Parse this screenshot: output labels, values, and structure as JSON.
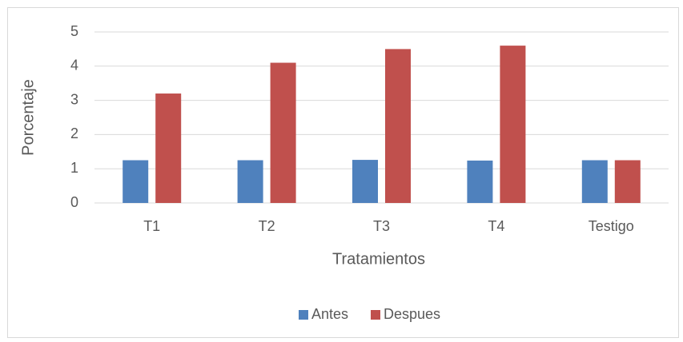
{
  "chart_data": {
    "type": "bar",
    "x_label": "Tratamientos",
    "y_label": "Porcentaje",
    "categories": [
      "T1",
      "T2",
      "T3",
      "T4",
      "Testigo"
    ],
    "series": [
      {
        "name": "Antes",
        "color": "#4f81bd",
        "values": [
          1.25,
          1.25,
          1.26,
          1.24,
          1.25
        ]
      },
      {
        "name": "Despues",
        "color": "#c0504d",
        "values": [
          3.2,
          4.1,
          4.5,
          4.6,
          1.25
        ]
      }
    ],
    "ylim": [
      0,
      5
    ],
    "yticks": [
      0,
      1,
      2,
      3,
      4,
      5
    ],
    "grid": true,
    "legend": "bottom"
  }
}
